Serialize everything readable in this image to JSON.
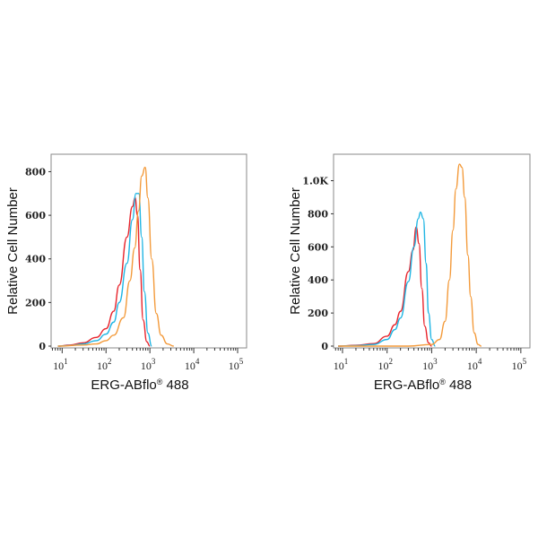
{
  "chart_data": [
    {
      "type": "line",
      "title": "",
      "xlabel": "ERG-ABflo® 488",
      "ylabel": "Relative Cell Number",
      "xscale": "log",
      "xlim": [
        5.6,
        160000
      ],
      "ylim": [
        0,
        880
      ],
      "xticks": [
        10,
        100,
        1000,
        10000,
        100000
      ],
      "xtick_labels": [
        [
          "10",
          "1"
        ],
        [
          "10",
          "2"
        ],
        [
          "10",
          "3"
        ],
        [
          "10",
          "4"
        ],
        [
          "10",
          "5"
        ]
      ],
      "yticks": [
        0,
        200,
        400,
        600,
        800
      ],
      "ytick_labels": [
        "0",
        "200",
        "400",
        "600",
        "800"
      ],
      "grid": false,
      "series": [
        {
          "color": "#e8242c",
          "points": [
            [
              8,
              0
            ],
            [
              15,
              5
            ],
            [
              30,
              15
            ],
            [
              60,
              40
            ],
            [
              100,
              80
            ],
            [
              150,
              160
            ],
            [
              200,
              280
            ],
            [
              300,
              500
            ],
            [
              400,
              640
            ],
            [
              460,
              680
            ],
            [
              520,
              600
            ],
            [
              600,
              350
            ],
            [
              700,
              120
            ],
            [
              850,
              20
            ],
            [
              1000,
              0
            ]
          ]
        },
        {
          "color": "#1fb5e3",
          "points": [
            [
              8,
              0
            ],
            [
              15,
              3
            ],
            [
              30,
              10
            ],
            [
              60,
              25
            ],
            [
              100,
              55
            ],
            [
              150,
              110
            ],
            [
              200,
              200
            ],
            [
              300,
              380
            ],
            [
              400,
              580
            ],
            [
              480,
              700
            ],
            [
              560,
              700
            ],
            [
              650,
              500
            ],
            [
              750,
              250
            ],
            [
              900,
              60
            ],
            [
              1100,
              0
            ]
          ]
        },
        {
          "color": "#f39a3a",
          "points": [
            [
              8,
              0
            ],
            [
              30,
              5
            ],
            [
              60,
              10
            ],
            [
              100,
              25
            ],
            [
              150,
              50
            ],
            [
              250,
              130
            ],
            [
              350,
              300
            ],
            [
              450,
              450
            ],
            [
              550,
              620
            ],
            [
              650,
              780
            ],
            [
              780,
              820
            ],
            [
              900,
              680
            ],
            [
              1100,
              400
            ],
            [
              1400,
              150
            ],
            [
              1800,
              50
            ],
            [
              2500,
              10
            ],
            [
              3500,
              0
            ]
          ]
        }
      ]
    },
    {
      "type": "line",
      "title": "",
      "xlabel": "ERG-ABflo® 488",
      "ylabel": "Relative Cell Number",
      "xscale": "log",
      "xlim": [
        6.3,
        160000
      ],
      "ylim": [
        0,
        1160
      ],
      "xticks": [
        10,
        100,
        1000,
        10000,
        100000
      ],
      "xtick_labels": [
        [
          "10",
          "1"
        ],
        [
          "10",
          "2"
        ],
        [
          "10",
          "3"
        ],
        [
          "10",
          "4"
        ],
        [
          "10",
          "5"
        ]
      ],
      "yticks": [
        0,
        200,
        400,
        600,
        800,
        1000
      ],
      "ytick_labels": [
        "0",
        "200",
        "400",
        "600",
        "800",
        "1.0K"
      ],
      "grid": false,
      "series": [
        {
          "color": "#e8242c",
          "points": [
            [
              8,
              0
            ],
            [
              20,
              5
            ],
            [
              50,
              15
            ],
            [
              100,
              60
            ],
            [
              150,
              130
            ],
            [
              200,
              210
            ],
            [
              300,
              450
            ],
            [
              380,
              580
            ],
            [
              450,
              720
            ],
            [
              520,
              620
            ],
            [
              600,
              350
            ],
            [
              700,
              120
            ],
            [
              850,
              20
            ],
            [
              1000,
              0
            ]
          ]
        },
        {
          "color": "#1fb5e3",
          "points": [
            [
              8,
              0
            ],
            [
              20,
              3
            ],
            [
              50,
              10
            ],
            [
              100,
              40
            ],
            [
              150,
              100
            ],
            [
              200,
              170
            ],
            [
              300,
              390
            ],
            [
              400,
              600
            ],
            [
              500,
              770
            ],
            [
              560,
              810
            ],
            [
              650,
              770
            ],
            [
              750,
              500
            ],
            [
              850,
              200
            ],
            [
              1000,
              40
            ],
            [
              1200,
              0
            ]
          ]
        },
        {
          "color": "#f39a3a",
          "points": [
            [
              8,
              0
            ],
            [
              300,
              0
            ],
            [
              1000,
              10
            ],
            [
              1500,
              40
            ],
            [
              2000,
              150
            ],
            [
              2500,
              400
            ],
            [
              3000,
              700
            ],
            [
              3500,
              950
            ],
            [
              4200,
              1100
            ],
            [
              4800,
              1080
            ],
            [
              5500,
              900
            ],
            [
              6500,
              550
            ],
            [
              7500,
              300
            ],
            [
              9000,
              80
            ],
            [
              11000,
              10
            ],
            [
              13000,
              0
            ]
          ]
        }
      ]
    }
  ]
}
